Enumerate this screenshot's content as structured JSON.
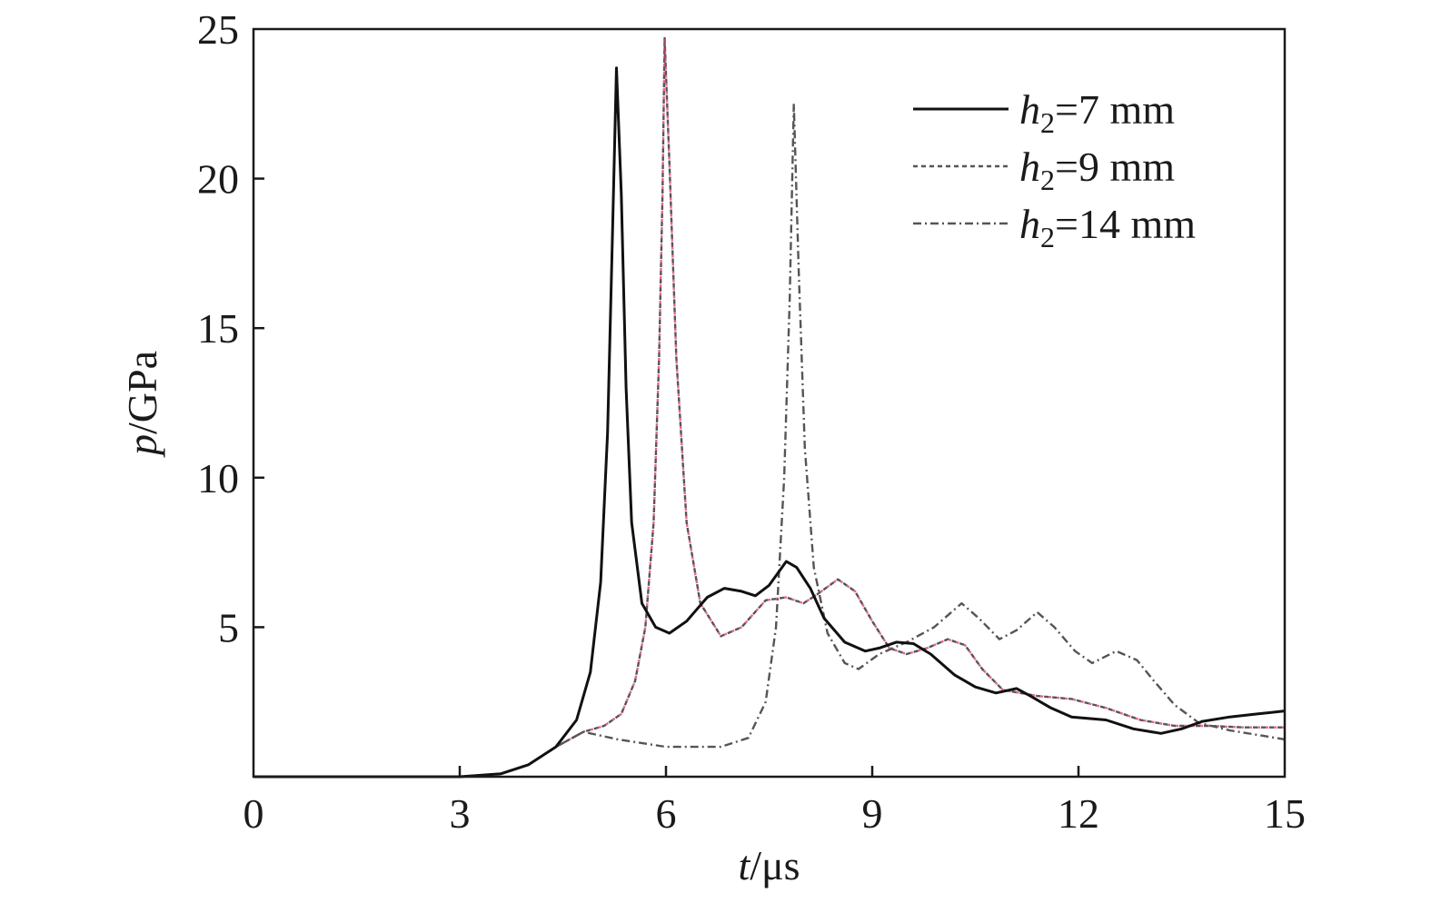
{
  "chart_data": {
    "type": "line",
    "xlabel": {
      "var": "t",
      "unit": "/μs"
    },
    "ylabel": {
      "var": "p",
      "unit": "/GPa"
    },
    "xlim": [
      0,
      15
    ],
    "ylim": [
      0,
      25
    ],
    "xticks": [
      0,
      3,
      6,
      9,
      12,
      15
    ],
    "yticks": [
      5,
      10,
      15,
      20,
      25
    ],
    "grid": false,
    "legend_position": "top-right",
    "series": [
      {
        "name": "h2=7 mm",
        "legend": {
          "var": "h",
          "sub": "2",
          "rest": "=7 mm"
        },
        "style": "solid",
        "color": "#111111",
        "points": [
          [
            0,
            0
          ],
          [
            3,
            0
          ],
          [
            3.6,
            0.1
          ],
          [
            4.0,
            0.4
          ],
          [
            4.4,
            1.0
          ],
          [
            4.7,
            1.9
          ],
          [
            4.9,
            3.5
          ],
          [
            5.05,
            6.5
          ],
          [
            5.15,
            11.5
          ],
          [
            5.22,
            18.0
          ],
          [
            5.28,
            23.7
          ],
          [
            5.35,
            19.5
          ],
          [
            5.42,
            13.0
          ],
          [
            5.5,
            8.5
          ],
          [
            5.65,
            5.8
          ],
          [
            5.85,
            5.0
          ],
          [
            6.05,
            4.8
          ],
          [
            6.3,
            5.2
          ],
          [
            6.6,
            6.0
          ],
          [
            6.85,
            6.3
          ],
          [
            7.1,
            6.2
          ],
          [
            7.3,
            6.05
          ],
          [
            7.5,
            6.4
          ],
          [
            7.75,
            7.2
          ],
          [
            7.9,
            7.0
          ],
          [
            8.1,
            6.3
          ],
          [
            8.3,
            5.3
          ],
          [
            8.6,
            4.5
          ],
          [
            8.9,
            4.2
          ],
          [
            9.1,
            4.3
          ],
          [
            9.35,
            4.5
          ],
          [
            9.6,
            4.45
          ],
          [
            9.85,
            4.1
          ],
          [
            10.2,
            3.4
          ],
          [
            10.5,
            3.0
          ],
          [
            10.8,
            2.8
          ],
          [
            11.1,
            2.95
          ],
          [
            11.3,
            2.7
          ],
          [
            11.6,
            2.3
          ],
          [
            11.9,
            2.0
          ],
          [
            12.4,
            1.9
          ],
          [
            12.8,
            1.6
          ],
          [
            13.2,
            1.45
          ],
          [
            13.5,
            1.6
          ],
          [
            13.8,
            1.85
          ],
          [
            14.2,
            2.0
          ],
          [
            14.6,
            2.1
          ],
          [
            15,
            2.2
          ]
        ]
      },
      {
        "name": "h2=9 mm",
        "legend": {
          "var": "h",
          "sub": "2",
          "rest": "=9 mm"
        },
        "style": "dashed",
        "color": "#555555",
        "accent_color": "#e0306a",
        "points": [
          [
            0,
            0
          ],
          [
            3,
            0
          ],
          [
            3.6,
            0.1
          ],
          [
            4.0,
            0.4
          ],
          [
            4.4,
            1.0
          ],
          [
            4.8,
            1.5
          ],
          [
            5.1,
            1.7
          ],
          [
            5.35,
            2.1
          ],
          [
            5.55,
            3.2
          ],
          [
            5.7,
            5.0
          ],
          [
            5.82,
            8.5
          ],
          [
            5.9,
            14.0
          ],
          [
            5.95,
            19.5
          ],
          [
            5.98,
            24.7
          ],
          [
            6.05,
            20.5
          ],
          [
            6.15,
            14.0
          ],
          [
            6.3,
            8.5
          ],
          [
            6.5,
            5.8
          ],
          [
            6.8,
            4.7
          ],
          [
            7.1,
            5.0
          ],
          [
            7.45,
            5.9
          ],
          [
            7.75,
            6.0
          ],
          [
            8.0,
            5.8
          ],
          [
            8.2,
            6.1
          ],
          [
            8.5,
            6.6
          ],
          [
            8.75,
            6.2
          ],
          [
            9.0,
            5.2
          ],
          [
            9.25,
            4.3
          ],
          [
            9.5,
            4.1
          ],
          [
            9.8,
            4.3
          ],
          [
            10.1,
            4.6
          ],
          [
            10.35,
            4.4
          ],
          [
            10.6,
            3.6
          ],
          [
            10.9,
            2.9
          ],
          [
            11.4,
            2.7
          ],
          [
            11.9,
            2.6
          ],
          [
            12.4,
            2.3
          ],
          [
            12.9,
            1.9
          ],
          [
            13.4,
            1.7
          ],
          [
            13.9,
            1.7
          ],
          [
            14.4,
            1.65
          ],
          [
            15,
            1.65
          ]
        ]
      },
      {
        "name": "h2=14 mm",
        "legend": {
          "var": "h",
          "sub": "2",
          "rest": "=14 mm"
        },
        "style": "dashdot",
        "color": "#555555",
        "points": [
          [
            0,
            0
          ],
          [
            3,
            0
          ],
          [
            3.6,
            0.1
          ],
          [
            4.0,
            0.4
          ],
          [
            4.4,
            1.0
          ],
          [
            4.8,
            1.5
          ],
          [
            5.3,
            1.25
          ],
          [
            6.0,
            1.0
          ],
          [
            6.8,
            1.0
          ],
          [
            7.2,
            1.3
          ],
          [
            7.45,
            2.5
          ],
          [
            7.6,
            5.0
          ],
          [
            7.72,
            10.0
          ],
          [
            7.8,
            16.0
          ],
          [
            7.86,
            22.5
          ],
          [
            7.93,
            17.0
          ],
          [
            8.02,
            11.0
          ],
          [
            8.15,
            7.0
          ],
          [
            8.35,
            4.8
          ],
          [
            8.6,
            3.8
          ],
          [
            8.8,
            3.6
          ],
          [
            9.1,
            4.1
          ],
          [
            9.5,
            4.5
          ],
          [
            9.9,
            5.0
          ],
          [
            10.3,
            5.8
          ],
          [
            10.55,
            5.3
          ],
          [
            10.85,
            4.6
          ],
          [
            11.1,
            4.9
          ],
          [
            11.4,
            5.5
          ],
          [
            11.65,
            5.0
          ],
          [
            11.95,
            4.2
          ],
          [
            12.2,
            3.8
          ],
          [
            12.55,
            4.2
          ],
          [
            12.85,
            3.9
          ],
          [
            13.1,
            3.2
          ],
          [
            13.4,
            2.4
          ],
          [
            13.75,
            1.8
          ],
          [
            14.2,
            1.55
          ],
          [
            14.6,
            1.4
          ],
          [
            15,
            1.25
          ]
        ]
      }
    ]
  }
}
